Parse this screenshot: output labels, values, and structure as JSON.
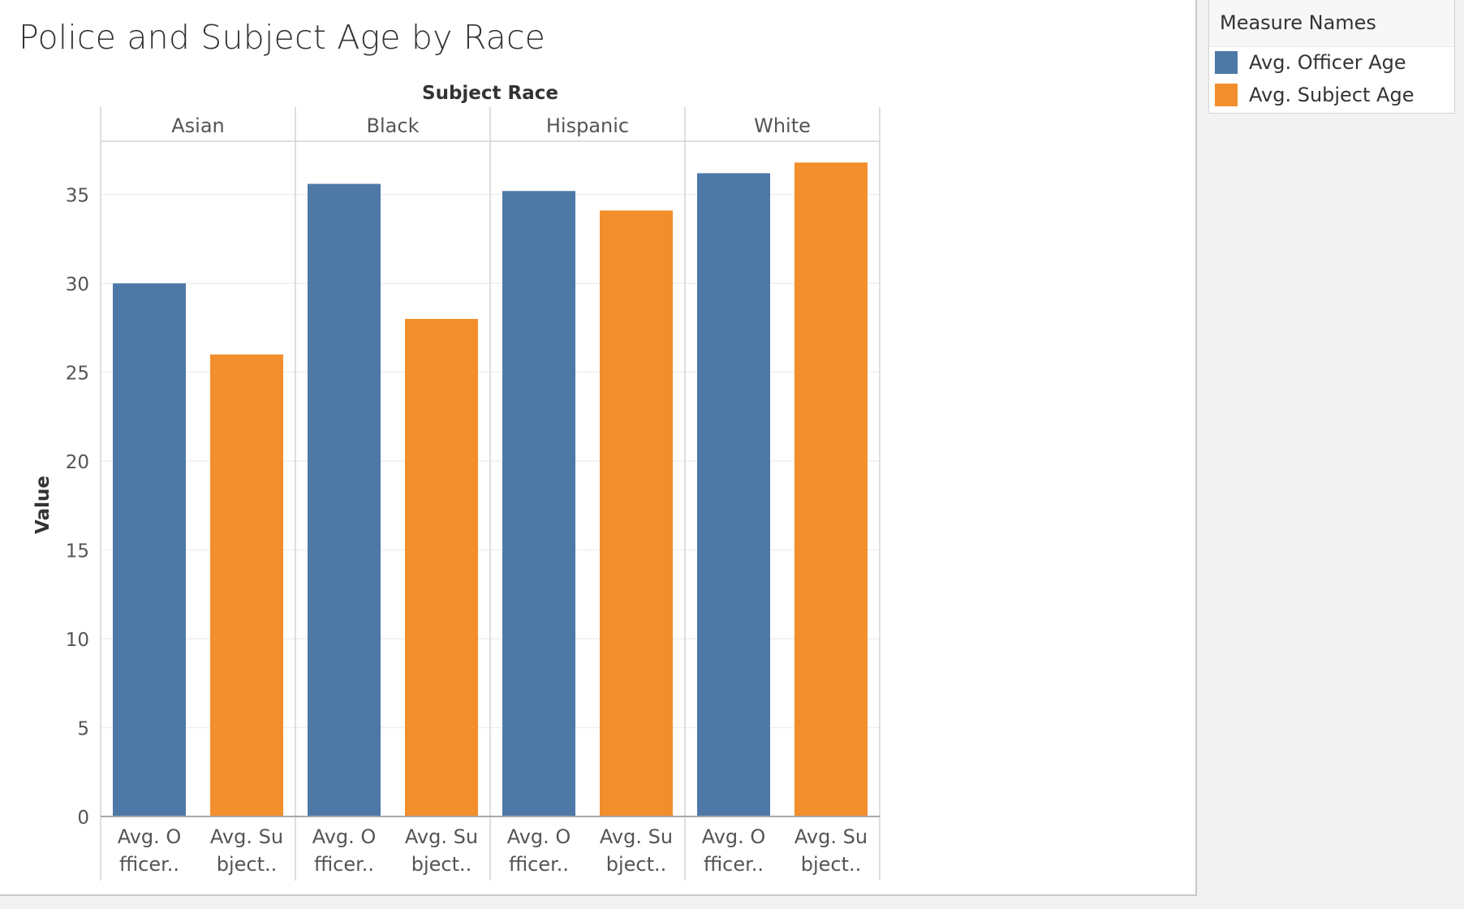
{
  "chart_data": {
    "type": "bar",
    "title": "Police and Subject Age by Race",
    "column_header": "Subject Race",
    "ylabel": "Value",
    "ylim": [
      0,
      38
    ],
    "yticks": [
      0,
      5,
      10,
      15,
      20,
      25,
      30,
      35
    ],
    "grid": true,
    "legend_position": "top-right",
    "legend_title": "Measure Names",
    "groups": [
      "Asian",
      "Black",
      "Hispanic",
      "White"
    ],
    "bar_labels": [
      [
        "Avg. O",
        "fficer.."
      ],
      [
        "Avg. Su",
        "bject.."
      ]
    ],
    "series": [
      {
        "name": "Avg. Officer Age",
        "color": "#4e79a7",
        "values": [
          30.0,
          35.6,
          35.2,
          36.2
        ]
      },
      {
        "name": "Avg. Subject Age",
        "color": "#f28e2b",
        "values": [
          26.0,
          28.0,
          34.1,
          36.8
        ]
      }
    ]
  }
}
